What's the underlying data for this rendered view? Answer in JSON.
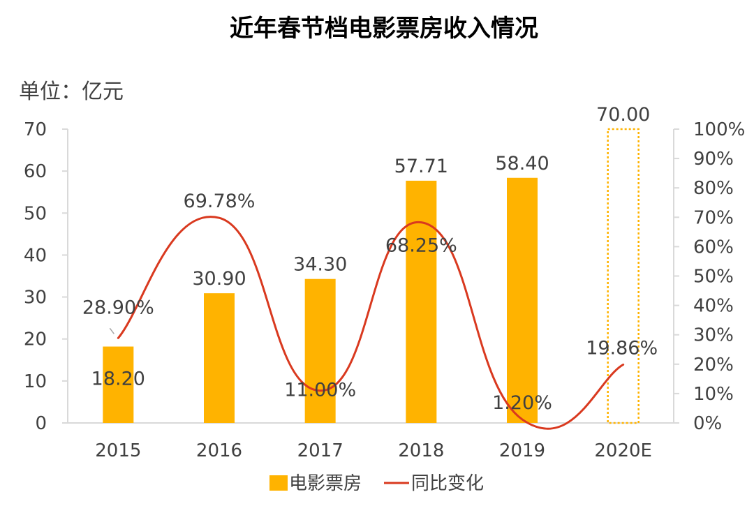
{
  "chart_data": {
    "type": "bar",
    "title": "近年春节档电影票房收入情况",
    "unit_label": "单位：亿元",
    "categories": [
      "2015",
      "2016",
      "2017",
      "2018",
      "2019",
      "2020E"
    ],
    "series": [
      {
        "name": "电影票房",
        "type": "bar",
        "axis": "left",
        "values": [
          18.2,
          30.9,
          34.3,
          57.71,
          58.4,
          70.0
        ],
        "labels": [
          "18.20",
          "30.90",
          "34.30",
          "57.71",
          "58.40",
          "70.00"
        ],
        "estimated_last": true,
        "color": "#FFB300"
      },
      {
        "name": "同比变化",
        "type": "line",
        "smooth": true,
        "axis": "right",
        "values": [
          28.9,
          69.78,
          11.0,
          68.25,
          1.2,
          19.86
        ],
        "labels": [
          "28.90%",
          "69.78%",
          "11.00%",
          "68.25%",
          "1.20%",
          "19.86%"
        ],
        "color": "#D9391F"
      }
    ],
    "y_left": {
      "min": 0,
      "max": 70,
      "step": 10,
      "ticks": [
        "0",
        "10",
        "20",
        "30",
        "40",
        "50",
        "60",
        "70"
      ]
    },
    "y_right": {
      "min": 0,
      "max": 100,
      "step": 10,
      "ticks": [
        "0%",
        "10%",
        "20%",
        "30%",
        "40%",
        "50%",
        "60%",
        "70%",
        "80%",
        "90%",
        "100%"
      ]
    },
    "grid": false,
    "legend_position": "bottom"
  }
}
